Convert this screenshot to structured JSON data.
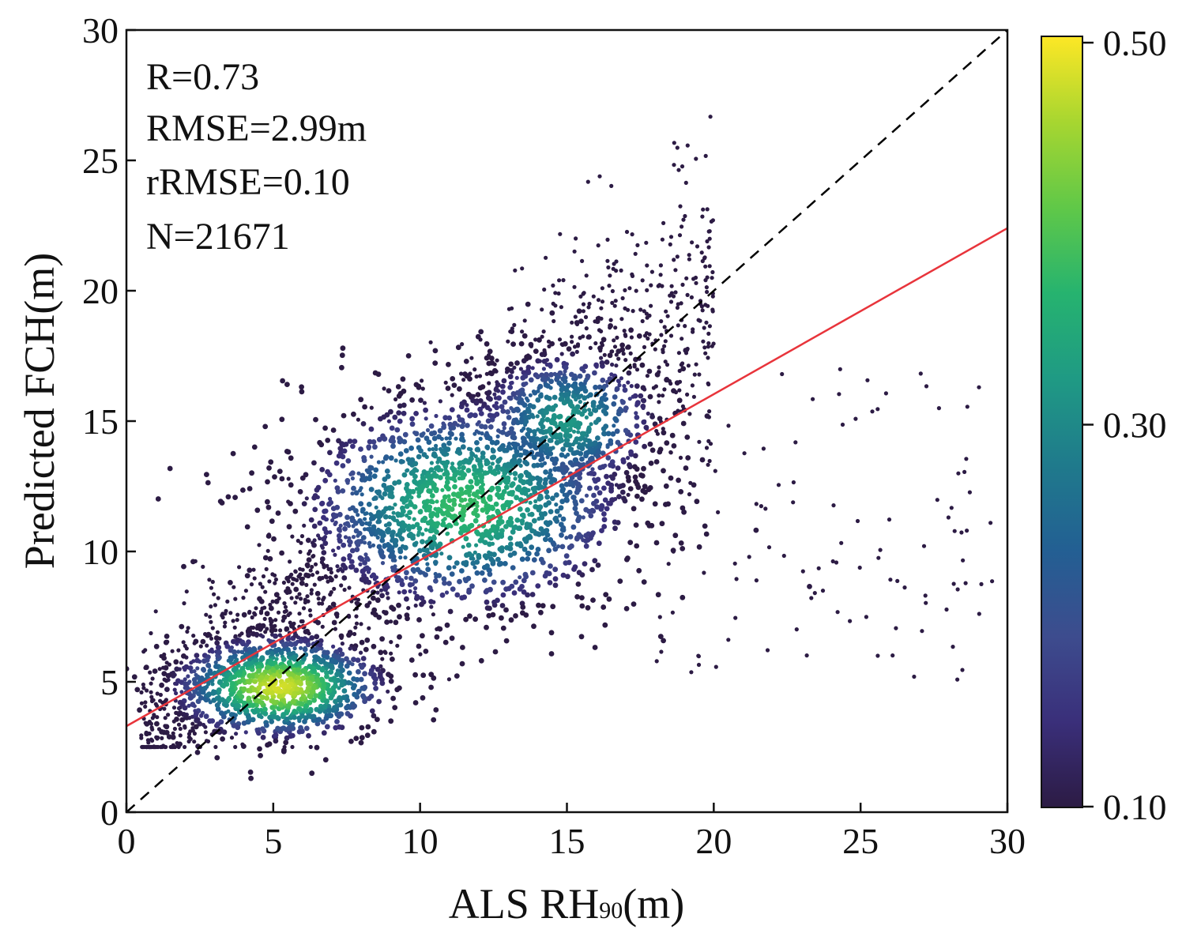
{
  "chart_data": {
    "type": "scatter",
    "title": "",
    "xlabel": "ALS RH",
    "xlabel_subscript": "90",
    "xlabel_suffix": "(m)",
    "ylabel": "Predicted FCH(m)",
    "xlim": [
      0,
      30
    ],
    "ylim": [
      0,
      30
    ],
    "x_ticks": [
      "0",
      "5",
      "10",
      "15",
      "20",
      "25",
      "30"
    ],
    "y_ticks": [
      "0",
      "5",
      "10",
      "15",
      "20",
      "25",
      "30"
    ],
    "grid": false,
    "annotations": [
      "R=0.73",
      "RMSE=2.99m",
      "rRMSE=0.10",
      "N=21671"
    ],
    "reference_line": {
      "name": "1:1 line",
      "style": "dashed",
      "color": "#000000",
      "x": [
        0,
        30
      ],
      "y": [
        0,
        30
      ]
    },
    "fit_line": {
      "name": "regression fit",
      "color": "#e8343b",
      "x": [
        0,
        30
      ],
      "y": [
        3.3,
        22.4
      ]
    },
    "density_colorbar": {
      "min": 0.1,
      "max": 0.5,
      "tick_labels": [
        "0.50",
        "0.30",
        "0.10"
      ],
      "tick_values": [
        0.5,
        0.3,
        0.1
      ],
      "colormap": [
        "#2c1b44",
        "#3a2f7a",
        "#3d4c8e",
        "#235f93",
        "#1f7a8c",
        "#1f9a84",
        "#26b36f",
        "#60c848",
        "#a7d630",
        "#fde725"
      ]
    },
    "density_clusters": [
      {
        "center": [
          5.2,
          4.8
        ],
        "spread": [
          2.2,
          1.2
        ],
        "peak_density": 0.48
      },
      {
        "center": [
          11.5,
          11.8
        ],
        "spread": [
          3.5,
          2.6
        ],
        "peak_density": 0.38
      },
      {
        "center": [
          15.0,
          15.0
        ],
        "spread": [
          2.0,
          1.8
        ],
        "peak_density": 0.32
      }
    ],
    "point_count": 21671
  }
}
